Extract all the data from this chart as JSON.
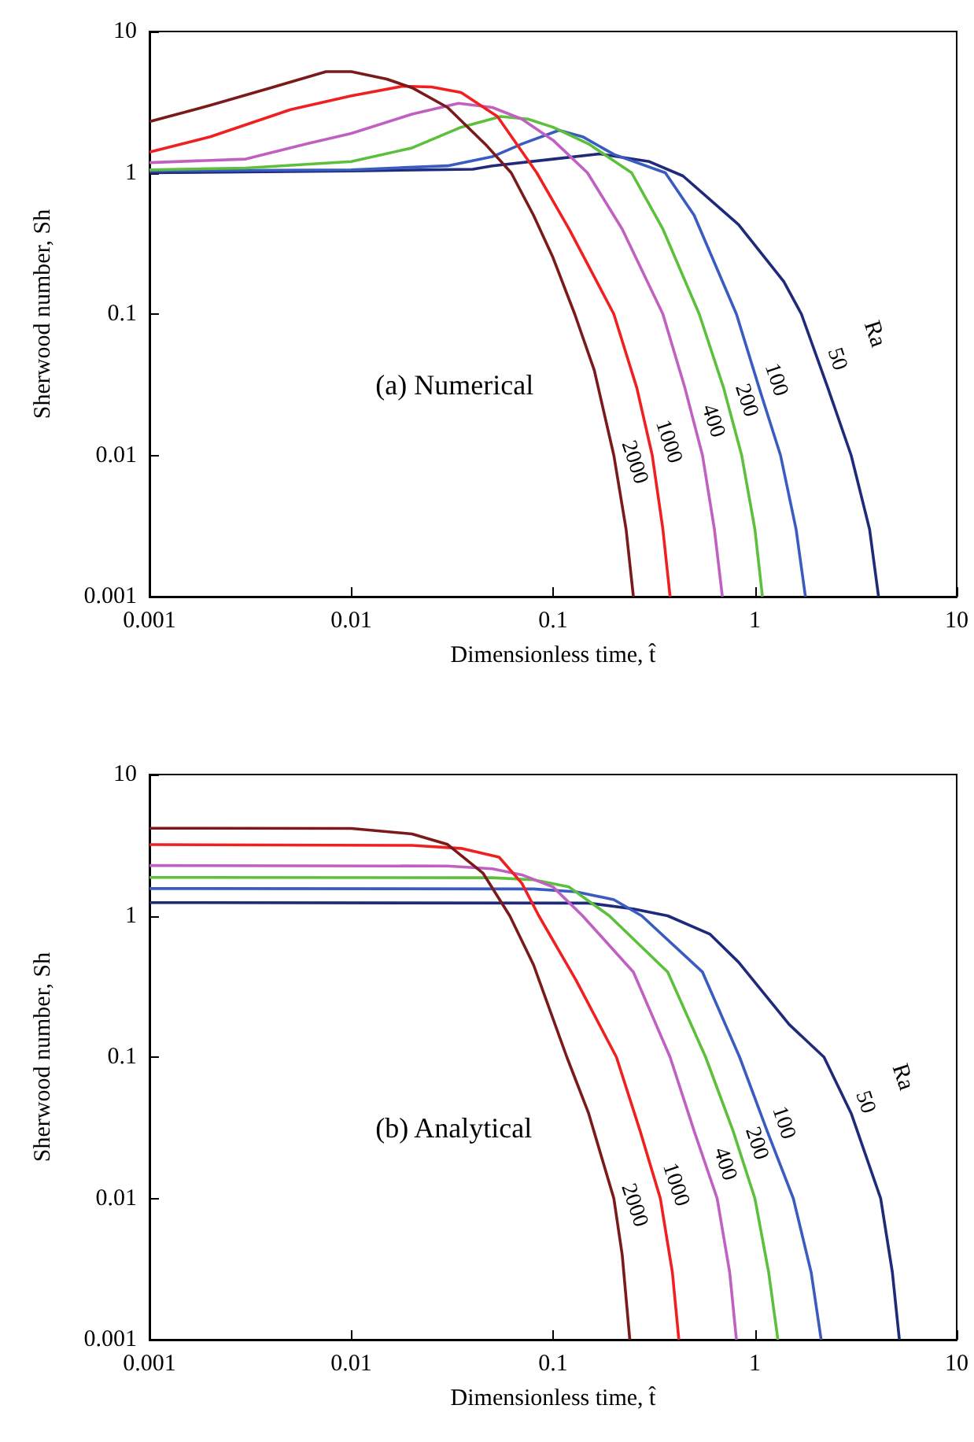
{
  "chart_data": [
    {
      "type": "line",
      "xlabel": "Dimensionless time, t̂",
      "ylabel": "Sherwood number, Sh",
      "log": "xy",
      "xlim": [
        0.001,
        10
      ],
      "ylim": [
        0.001,
        10
      ],
      "xticks": [
        0.001,
        0.01,
        0.1,
        1,
        10
      ],
      "yticks": [
        0.001,
        0.01,
        0.1,
        1,
        10
      ],
      "annotations": [
        "(a) Numerical",
        "Ra"
      ],
      "series": [
        {
          "name": "50",
          "color": "#1f2a7a",
          "x": [
            0.001,
            0.01,
            0.04,
            0.05,
            0.1,
            0.17,
            0.3,
            0.44,
            0.83,
            1.39,
            1.7,
            2.3,
            3.0,
            3.7,
            4.1
          ],
          "values": [
            1.0,
            1.03,
            1.06,
            1.12,
            1.25,
            1.36,
            1.2,
            0.95,
            0.43,
            0.17,
            0.1,
            0.03,
            0.01,
            0.003,
            0.001
          ]
        },
        {
          "name": "100",
          "color": "#3a5cc0",
          "x": [
            0.001,
            0.01,
            0.03,
            0.05,
            0.07,
            0.107,
            0.14,
            0.2,
            0.36,
            0.5,
            0.81,
            1.05,
            1.34,
            1.6,
            1.78
          ],
          "values": [
            1.03,
            1.05,
            1.12,
            1.3,
            1.6,
            2.0,
            1.8,
            1.35,
            1.0,
            0.5,
            0.1,
            0.03,
            0.01,
            0.003,
            0.001
          ]
        },
        {
          "name": "200",
          "color": "#5cc03c",
          "x": [
            0.001,
            0.003,
            0.01,
            0.02,
            0.035,
            0.055,
            0.075,
            0.1,
            0.15,
            0.245,
            0.35,
            0.53,
            0.7,
            0.86,
            1.0,
            1.09
          ],
          "values": [
            1.05,
            1.08,
            1.2,
            1.5,
            2.1,
            2.5,
            2.4,
            2.1,
            1.6,
            1.0,
            0.4,
            0.1,
            0.03,
            0.01,
            0.003,
            0.001
          ]
        },
        {
          "name": "400",
          "color": "#c060c0",
          "x": [
            0.001,
            0.003,
            0.006,
            0.01,
            0.02,
            0.034,
            0.05,
            0.07,
            0.1,
            0.148,
            0.22,
            0.35,
            0.45,
            0.55,
            0.63,
            0.69
          ],
          "values": [
            1.18,
            1.25,
            1.6,
            1.9,
            2.6,
            3.1,
            2.9,
            2.4,
            1.7,
            1.0,
            0.4,
            0.1,
            0.03,
            0.01,
            0.003,
            0.001
          ]
        },
        {
          "name": "1000",
          "color": "#f02020",
          "x": [
            0.001,
            0.002,
            0.005,
            0.01,
            0.018,
            0.025,
            0.035,
            0.053,
            0.083,
            0.12,
            0.2,
            0.26,
            0.31,
            0.35,
            0.38
          ],
          "values": [
            1.4,
            1.8,
            2.8,
            3.5,
            4.1,
            4.05,
            3.7,
            2.5,
            1.0,
            0.4,
            0.1,
            0.03,
            0.01,
            0.003,
            0.001
          ]
        },
        {
          "name": "2000",
          "color": "#7a1a1a",
          "x": [
            0.001,
            0.002,
            0.004,
            0.0075,
            0.01,
            0.015,
            0.02,
            0.03,
            0.047,
            0.062,
            0.08,
            0.1,
            0.128,
            0.16,
            0.2,
            0.23,
            0.25
          ],
          "values": [
            2.3,
            3.0,
            4.0,
            5.2,
            5.2,
            4.6,
            4.0,
            2.9,
            1.55,
            1.0,
            0.5,
            0.25,
            0.1,
            0.04,
            0.01,
            0.003,
            0.001
          ]
        }
      ]
    },
    {
      "type": "line",
      "xlabel": "Dimensionless time, t̂",
      "ylabel": "Sherwood number, Sh",
      "log": "xy",
      "xlim": [
        0.001,
        10
      ],
      "ylim": [
        0.001,
        10
      ],
      "xticks": [
        0.001,
        0.01,
        0.1,
        1,
        10
      ],
      "yticks": [
        0.001,
        0.01,
        0.1,
        1,
        10
      ],
      "annotations": [
        "(b) Analytical",
        "Ra"
      ],
      "series": [
        {
          "name": "50",
          "color": "#1f2a7a",
          "x": [
            0.001,
            0.15,
            0.25,
            0.37,
            0.6,
            0.83,
            1.48,
            2.2,
            3.0,
            4.2,
            4.8,
            5.2
          ],
          "values": [
            1.24,
            1.23,
            1.12,
            1.0,
            0.74,
            0.47,
            0.17,
            0.1,
            0.04,
            0.01,
            0.003,
            0.001
          ]
        },
        {
          "name": "100",
          "color": "#3a5cc0",
          "x": [
            0.001,
            0.08,
            0.13,
            0.2,
            0.275,
            0.55,
            0.84,
            1.15,
            1.55,
            1.9,
            2.13
          ],
          "values": [
            1.56,
            1.55,
            1.48,
            1.3,
            1.0,
            0.4,
            0.1,
            0.03,
            0.01,
            0.003,
            0.001
          ]
        },
        {
          "name": "200",
          "color": "#5cc03c",
          "x": [
            0.001,
            0.05,
            0.08,
            0.12,
            0.19,
            0.37,
            0.57,
            0.78,
            1.0,
            1.17,
            1.3
          ],
          "values": [
            1.87,
            1.86,
            1.8,
            1.6,
            1.0,
            0.4,
            0.1,
            0.03,
            0.01,
            0.003,
            0.001
          ]
        },
        {
          "name": "400",
          "color": "#c060c0",
          "x": [
            0.001,
            0.03,
            0.05,
            0.07,
            0.1,
            0.14,
            0.25,
            0.38,
            0.5,
            0.65,
            0.75,
            0.81
          ],
          "values": [
            2.27,
            2.25,
            2.15,
            1.95,
            1.6,
            1.0,
            0.4,
            0.1,
            0.03,
            0.01,
            0.003,
            0.001
          ]
        },
        {
          "name": "1000",
          "color": "#f02020",
          "x": [
            0.001,
            0.02,
            0.035,
            0.054,
            0.07,
            0.085,
            0.13,
            0.206,
            0.27,
            0.34,
            0.39,
            0.42
          ],
          "values": [
            3.19,
            3.15,
            3.0,
            2.6,
            1.7,
            1.0,
            0.35,
            0.1,
            0.03,
            0.01,
            0.003,
            0.001
          ]
        },
        {
          "name": "2000",
          "color": "#7a1a1a",
          "x": [
            0.001,
            0.01,
            0.02,
            0.03,
            0.045,
            0.061,
            0.08,
            0.117,
            0.15,
            0.2,
            0.22,
            0.24
          ],
          "values": [
            4.17,
            4.15,
            3.8,
            3.2,
            2.0,
            1.0,
            0.45,
            0.1,
            0.04,
            0.01,
            0.004,
            0.001
          ]
        }
      ]
    }
  ]
}
